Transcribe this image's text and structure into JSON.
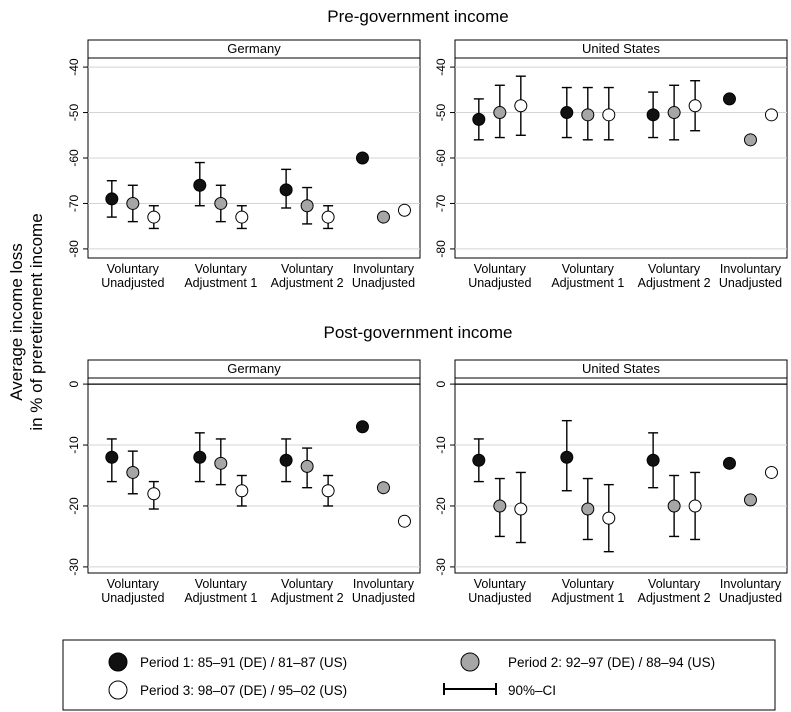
{
  "ylabel_lines": [
    "Average income loss",
    "in % of preretirement income"
  ],
  "sections": [
    {
      "title": "Pre-government income"
    },
    {
      "title": "Post-government income"
    }
  ],
  "categories": [
    [
      "Voluntary",
      "Unadjusted"
    ],
    [
      "Voluntary",
      "Adjustment 1"
    ],
    [
      "Voluntary",
      "Adjustment 2"
    ],
    [
      "Involuntary",
      "Unadjusted"
    ]
  ],
  "legend": {
    "entries": [
      {
        "label": "Period 1: 85–91 (DE) / 81–87 (US)",
        "fill": "#111111"
      },
      {
        "label": "Period 2: 92–97 (DE) / 88–94 (US)",
        "fill": "#a6a6a6"
      },
      {
        "label": "Period 3: 98–07 (DE) / 95–02 (US)",
        "fill": "#ffffff"
      }
    ],
    "ci_label": "90%–CI"
  },
  "colors": {
    "period1": "#111111",
    "period2": "#a6a6a6",
    "period3": "#ffffff",
    "grid": "#d4d4d4",
    "axis": "#000000"
  },
  "chart_data": [
    {
      "type": "scatter",
      "section": "Pre-government income",
      "title": "Germany",
      "ylim": [
        -82,
        -38
      ],
      "yticks": [
        -40,
        -50,
        -60,
        -70,
        -80
      ],
      "reversed_y": true,
      "grid": true,
      "points": [
        {
          "category": 0,
          "period": 1,
          "y": -69,
          "ci": [
            -73,
            -65
          ]
        },
        {
          "category": 0,
          "period": 2,
          "y": -70,
          "ci": [
            -74,
            -66
          ]
        },
        {
          "category": 0,
          "period": 3,
          "y": -73,
          "ci": [
            -75.5,
            -70.5
          ]
        },
        {
          "category": 1,
          "period": 1,
          "y": -66,
          "ci": [
            -70.5,
            -61
          ]
        },
        {
          "category": 1,
          "period": 2,
          "y": -70,
          "ci": [
            -74,
            -66
          ]
        },
        {
          "category": 1,
          "period": 3,
          "y": -73,
          "ci": [
            -75.5,
            -70.5
          ]
        },
        {
          "category": 2,
          "period": 1,
          "y": -67,
          "ci": [
            -71,
            -62.5
          ]
        },
        {
          "category": 2,
          "period": 2,
          "y": -70.5,
          "ci": [
            -74.5,
            -66.5
          ]
        },
        {
          "category": 2,
          "period": 3,
          "y": -73,
          "ci": [
            -75.5,
            -70.5
          ]
        },
        {
          "category": 3,
          "period": 1,
          "y": -60
        },
        {
          "category": 3,
          "period": 2,
          "y": -73
        },
        {
          "category": 3,
          "period": 3,
          "y": -71.5
        }
      ]
    },
    {
      "type": "scatter",
      "section": "Pre-government income",
      "title": "United States",
      "ylim": [
        -82,
        -38
      ],
      "yticks": [
        -40,
        -50,
        -60,
        -70,
        -80
      ],
      "reversed_y": true,
      "grid": true,
      "points": [
        {
          "category": 0,
          "period": 1,
          "y": -51.5,
          "ci": [
            -56,
            -47
          ]
        },
        {
          "category": 0,
          "period": 2,
          "y": -50,
          "ci": [
            -55.5,
            -44
          ]
        },
        {
          "category": 0,
          "period": 3,
          "y": -48.5,
          "ci": [
            -55,
            -42
          ]
        },
        {
          "category": 1,
          "period": 1,
          "y": -50,
          "ci": [
            -55.5,
            -44.5
          ]
        },
        {
          "category": 1,
          "period": 2,
          "y": -50.5,
          "ci": [
            -56,
            -44.5
          ]
        },
        {
          "category": 1,
          "period": 3,
          "y": -50.5,
          "ci": [
            -56,
            -44.5
          ]
        },
        {
          "category": 2,
          "period": 1,
          "y": -50.5,
          "ci": [
            -55.5,
            -45.5
          ]
        },
        {
          "category": 2,
          "period": 2,
          "y": -50,
          "ci": [
            -56,
            -44
          ]
        },
        {
          "category": 2,
          "period": 3,
          "y": -48.5,
          "ci": [
            -54,
            -43
          ]
        },
        {
          "category": 3,
          "period": 1,
          "y": -47
        },
        {
          "category": 3,
          "period": 2,
          "y": -56
        },
        {
          "category": 3,
          "period": 3,
          "y": -50.5
        }
      ]
    },
    {
      "type": "scatter",
      "section": "Post-government income",
      "title": "Germany",
      "ylim": [
        -31,
        1
      ],
      "yticks": [
        0,
        -10,
        -20,
        -30
      ],
      "reversed_y": true,
      "grid": true,
      "zero_line": true,
      "points": [
        {
          "category": 0,
          "period": 1,
          "y": -12,
          "ci": [
            -16,
            -9
          ]
        },
        {
          "category": 0,
          "period": 2,
          "y": -14.5,
          "ci": [
            -18,
            -11
          ]
        },
        {
          "category": 0,
          "period": 3,
          "y": -18,
          "ci": [
            -20.5,
            -16
          ]
        },
        {
          "category": 1,
          "period": 1,
          "y": -12,
          "ci": [
            -16,
            -8
          ]
        },
        {
          "category": 1,
          "period": 2,
          "y": -13,
          "ci": [
            -16.5,
            -9
          ]
        },
        {
          "category": 1,
          "period": 3,
          "y": -17.5,
          "ci": [
            -20,
            -15
          ]
        },
        {
          "category": 2,
          "period": 1,
          "y": -12.5,
          "ci": [
            -16,
            -9
          ]
        },
        {
          "category": 2,
          "period": 2,
          "y": -13.5,
          "ci": [
            -17,
            -10.5
          ]
        },
        {
          "category": 2,
          "period": 3,
          "y": -17.5,
          "ci": [
            -20,
            -15
          ]
        },
        {
          "category": 3,
          "period": 1,
          "y": -7
        },
        {
          "category": 3,
          "period": 2,
          "y": -17
        },
        {
          "category": 3,
          "period": 3,
          "y": -22.5
        }
      ]
    },
    {
      "type": "scatter",
      "section": "Post-government income",
      "title": "United States",
      "ylim": [
        -31,
        1
      ],
      "yticks": [
        0,
        -10,
        -20,
        -30
      ],
      "reversed_y": true,
      "grid": true,
      "zero_line": true,
      "points": [
        {
          "category": 0,
          "period": 1,
          "y": -12.5,
          "ci": [
            -16,
            -9
          ]
        },
        {
          "category": 0,
          "period": 2,
          "y": -20,
          "ci": [
            -25,
            -15.5
          ]
        },
        {
          "category": 0,
          "period": 3,
          "y": -20.5,
          "ci": [
            -26,
            -14.5
          ]
        },
        {
          "category": 1,
          "period": 1,
          "y": -12,
          "ci": [
            -17.5,
            -6
          ]
        },
        {
          "category": 1,
          "period": 2,
          "y": -20.5,
          "ci": [
            -25.5,
            -15.5
          ]
        },
        {
          "category": 1,
          "period": 3,
          "y": -22,
          "ci": [
            -27.5,
            -16.5
          ]
        },
        {
          "category": 2,
          "period": 1,
          "y": -12.5,
          "ci": [
            -17,
            -8
          ]
        },
        {
          "category": 2,
          "period": 2,
          "y": -20,
          "ci": [
            -25,
            -15
          ]
        },
        {
          "category": 2,
          "period": 3,
          "y": -20,
          "ci": [
            -25.5,
            -14.5
          ]
        },
        {
          "category": 3,
          "period": 1,
          "y": -13
        },
        {
          "category": 3,
          "period": 2,
          "y": -19
        },
        {
          "category": 3,
          "period": 3,
          "y": -14.5
        }
      ]
    }
  ]
}
